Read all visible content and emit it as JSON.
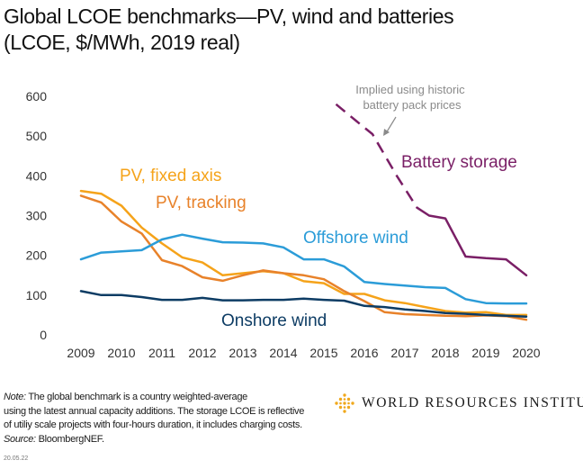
{
  "title": {
    "line1": "Global LCOE benchmarks—PV, wind and batteries",
    "line2": "(LCOE, $/MWh, 2019 real)"
  },
  "chart_data": {
    "type": "line",
    "title": "Global LCOE benchmarks—PV, wind and batteries",
    "subtitle": "(LCOE, $/MWh, 2019 real)",
    "xlabel": "",
    "ylabel": "",
    "xlim": [
      2009,
      2020
    ],
    "ylim": [
      0,
      600
    ],
    "x_ticks": [
      2009,
      2010,
      2011,
      2012,
      2013,
      2014,
      2015,
      2016,
      2017,
      2018,
      2019,
      2020
    ],
    "y_ticks": [
      0,
      100,
      200,
      300,
      400,
      500,
      600
    ],
    "grid": false,
    "series": [
      {
        "name": "PV, fixed axis",
        "color": "#f5a31a",
        "x": [
          2009,
          2009.5,
          2010,
          2010.5,
          2011,
          2011.5,
          2012,
          2012.5,
          2013,
          2013.5,
          2014,
          2014.5,
          2015,
          2015.5,
          2016,
          2016.5,
          2017,
          2017.5,
          2018,
          2018.5,
          2019,
          2019.5,
          2020
        ],
        "y": [
          362,
          355,
          325,
          270,
          230,
          195,
          182,
          150,
          155,
          160,
          155,
          135,
          130,
          103,
          103,
          87,
          80,
          70,
          60,
          56,
          57,
          50,
          50
        ]
      },
      {
        "name": "PV, tracking",
        "color": "#e8822a",
        "x": [
          2009,
          2009.5,
          2010,
          2010.5,
          2011,
          2011.5,
          2012,
          2012.5,
          2013,
          2013.5,
          2014,
          2014.5,
          2015,
          2015.5,
          2016,
          2016.5,
          2017,
          2017.5,
          2018,
          2018.5,
          2019,
          2019.5,
          2020
        ],
        "y": [
          350,
          333,
          285,
          255,
          188,
          173,
          145,
          136,
          150,
          162,
          155,
          150,
          140,
          110,
          85,
          57,
          52,
          50,
          48,
          47,
          49,
          47,
          38
        ]
      },
      {
        "name": "Offshore wind",
        "color": "#2b9cd8",
        "x": [
          2009,
          2009.5,
          2010,
          2010.5,
          2011,
          2011.5,
          2012,
          2012.5,
          2013,
          2013.5,
          2014,
          2014.5,
          2015,
          2015.5,
          2016,
          2016.5,
          2017,
          2017.5,
          2018,
          2018.5,
          2019,
          2019.5,
          2020
        ],
        "y": [
          190,
          207,
          210,
          213,
          240,
          252,
          242,
          233,
          232,
          230,
          220,
          190,
          190,
          172,
          133,
          128,
          124,
          120,
          118,
          90,
          80,
          79,
          79
        ]
      },
      {
        "name": "Onshore wind",
        "color": "#0d3c64",
        "x": [
          2009,
          2009.5,
          2010,
          2010.5,
          2011,
          2011.5,
          2012,
          2012.5,
          2013,
          2013.5,
          2014,
          2014.5,
          2015,
          2015.5,
          2016,
          2016.5,
          2017,
          2017.5,
          2018,
          2018.5,
          2019,
          2019.5,
          2020
        ],
        "y": [
          110,
          100,
          100,
          95,
          88,
          88,
          93,
          87,
          87,
          88,
          88,
          91,
          88,
          86,
          73,
          70,
          64,
          60,
          55,
          53,
          50,
          48,
          46
        ]
      },
      {
        "name": "Battery storage",
        "color": "#7a1f66",
        "x": [
          2017.3,
          2017.6,
          2018,
          2018.5,
          2019,
          2019.5,
          2020
        ],
        "y": [
          320,
          300,
          293,
          197,
          193,
          190,
          150
        ],
        "implied": {
          "note": "Implied using historic battery pack prices",
          "x": [
            2015.3,
            2015.8,
            2016.2,
            2016.8,
            2017.3
          ],
          "y": [
            580,
            538,
            505,
            400,
            320
          ]
        }
      }
    ],
    "annotations": [
      "PV, fixed axis",
      "PV, tracking",
      "Offshore wind",
      "Onshore wind",
      "Battery storage",
      "Implied using historic",
      "battery pack prices"
    ]
  },
  "annotation_labels": {
    "pv_fixed": "PV, fixed axis",
    "pv_tracking": "PV, tracking",
    "offshore": "Offshore wind",
    "onshore": "Onshore wind",
    "battery": "Battery storage",
    "implied_line1": "Implied using historic",
    "implied_line2": "battery pack prices"
  },
  "note": {
    "label": "Note:",
    "text1": " The global benchmark is a country weighted-average",
    "text2": "using the latest annual capacity additions. The storage LCOE is reflective",
    "text3": "of utiliy scale projects with four-hours duration, it includes charging costs.",
    "source_label": "Source:",
    "source_text": " BloombergNEF."
  },
  "date_stamp": "20.05.22",
  "logo": {
    "text": "WORLD RESOURCES INSTITUTE",
    "color": "#f0a81c"
  }
}
